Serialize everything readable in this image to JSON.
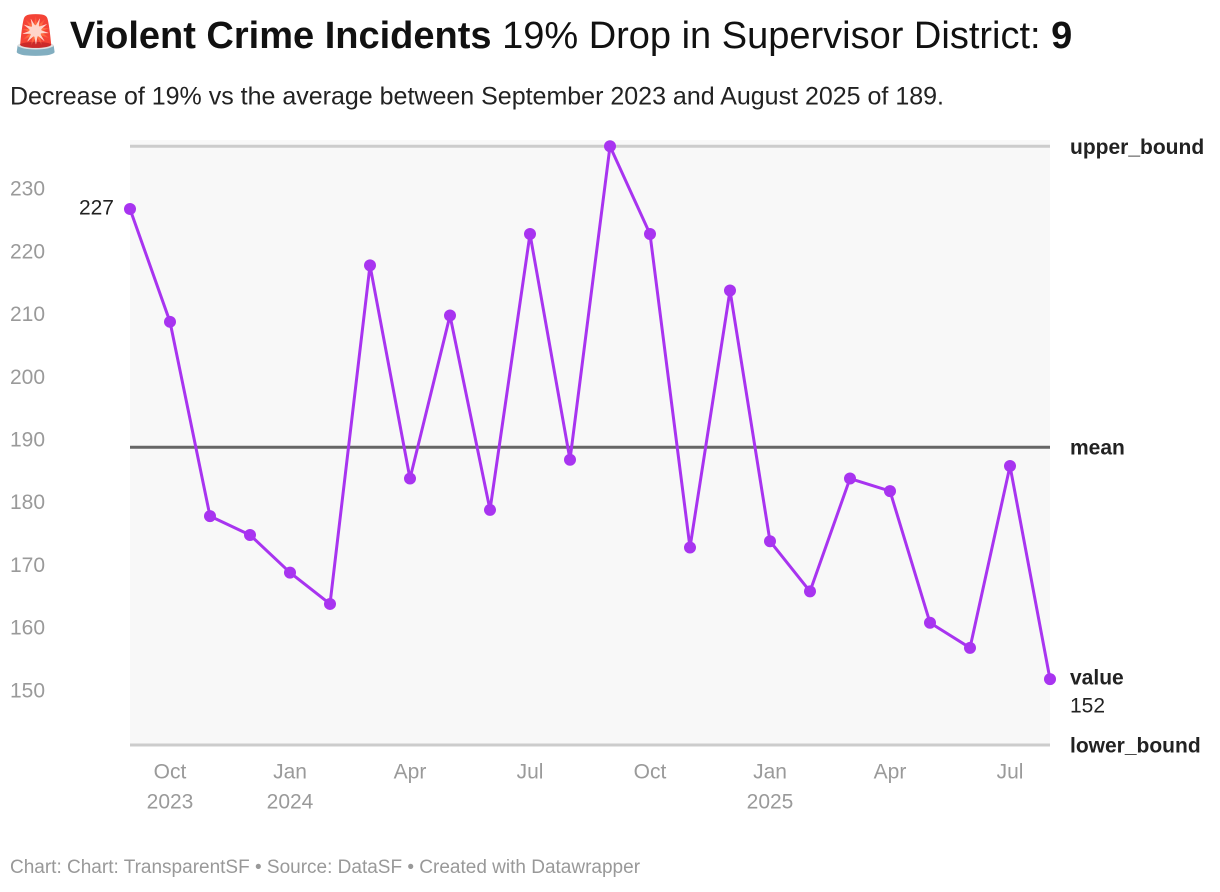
{
  "chart_data": {
    "type": "line",
    "title": {
      "icon": "🚨",
      "bold": "Violent Crime Incidents",
      "rest": "19% Drop in Supervisor District:",
      "district": "9"
    },
    "subtitle": "Decrease of 19% vs the average between September 2023 and August 2025 of 189.",
    "footer": "Chart: Chart: TransparentSF • Source: DataSF • Created with Datawrapper",
    "x": [
      "2023-09",
      "2023-10",
      "2023-11",
      "2023-12",
      "2024-01",
      "2024-02",
      "2024-03",
      "2024-04",
      "2024-05",
      "2024-06",
      "2024-07",
      "2024-08",
      "2024-09",
      "2024-10",
      "2024-11",
      "2024-12",
      "2025-01",
      "2025-02",
      "2025-03",
      "2025-04",
      "2025-05",
      "2025-06",
      "2025-07",
      "2025-08"
    ],
    "series": [
      {
        "name": "value",
        "color": "#a834f0",
        "values": [
          227,
          209,
          178,
          175,
          169,
          164,
          218,
          184,
          210,
          179,
          223,
          187,
          237,
          223,
          173,
          214,
          174,
          166,
          184,
          182,
          161,
          157,
          186,
          152
        ]
      }
    ],
    "reference_lines": [
      {
        "name": "upper_bound",
        "value": 237,
        "color": "#cccccc"
      },
      {
        "name": "mean",
        "value": 189,
        "color": "#666666"
      },
      {
        "name": "lower_bound",
        "value": 141.5,
        "color": "#cccccc"
      }
    ],
    "ylim": [
      141.5,
      238
    ],
    "yticks": [
      150,
      160,
      170,
      180,
      190,
      200,
      210,
      220,
      230
    ],
    "xticks": [
      {
        "value": "2023-10",
        "label": "Oct",
        "year": "2023"
      },
      {
        "value": "2024-01",
        "label": "Jan",
        "year": "2024"
      },
      {
        "value": "2024-04",
        "label": "Apr"
      },
      {
        "value": "2024-07",
        "label": "Jul"
      },
      {
        "value": "2024-10",
        "label": "Oct"
      },
      {
        "value": "2025-01",
        "label": "Jan",
        "year": "2025"
      },
      {
        "value": "2025-04",
        "label": "Apr"
      },
      {
        "value": "2025-07",
        "label": "Jul"
      }
    ]
  }
}
